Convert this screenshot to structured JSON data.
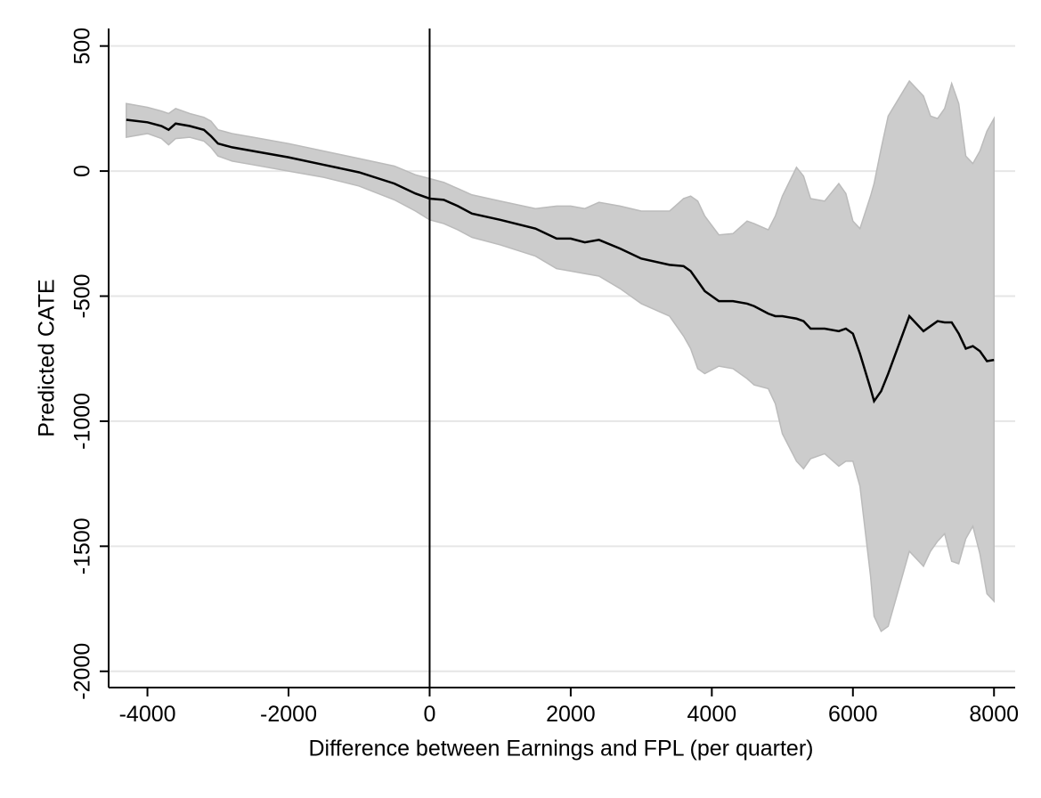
{
  "chart_data": {
    "type": "line",
    "x_label": "Difference between Earnings and FPL (per quarter)",
    "y_label": "Predicted CATE",
    "x": [
      -4300,
      -4000,
      -3800,
      -3700,
      -3600,
      -3400,
      -3200,
      -3100,
      -3000,
      -2800,
      -2500,
      -2000,
      -1500,
      -1000,
      -500,
      -200,
      0,
      200,
      400,
      600,
      1000,
      1500,
      1800,
      2000,
      2200,
      2400,
      2700,
      3000,
      3400,
      3600,
      3700,
      3800,
      3900,
      4100,
      4300,
      4500,
      4600,
      4800,
      4900,
      5000,
      5200,
      5300,
      5400,
      5600,
      5800,
      5900,
      6000,
      6100,
      6250,
      6300,
      6400,
      6500,
      6800,
      7000,
      7100,
      7200,
      7300,
      7400,
      7500,
      7600,
      7700,
      7800,
      7900,
      8000
    ],
    "series": [
      {
        "color": "#000000",
        "values": [
          205,
          195,
          180,
          165,
          190,
          180,
          165,
          140,
          110,
          95,
          80,
          55,
          25,
          -5,
          -50,
          -90,
          -110,
          -115,
          -140,
          -170,
          -195,
          -230,
          -270,
          -270,
          -285,
          -275,
          -310,
          -350,
          -375,
          -380,
          -400,
          -440,
          -480,
          -520,
          -520,
          -530,
          -540,
          -570,
          -580,
          -580,
          -590,
          -600,
          -630,
          -630,
          -640,
          -630,
          -650,
          -730,
          -870,
          -920,
          -880,
          -810,
          -580,
          -640,
          -620,
          -600,
          -605,
          -605,
          -650,
          -710,
          -700,
          -720,
          -760,
          -755
        ]
      }
    ],
    "band": {
      "color": "#cccccc",
      "upper": [
        270,
        255,
        240,
        230,
        250,
        230,
        215,
        200,
        165,
        150,
        135,
        110,
        80,
        50,
        20,
        -15,
        -30,
        -45,
        -70,
        -95,
        -120,
        -150,
        -140,
        -140,
        -150,
        -125,
        -140,
        -160,
        -160,
        -110,
        -100,
        -120,
        -180,
        -255,
        -250,
        -200,
        -210,
        -235,
        -180,
        -100,
        15,
        -20,
        -110,
        -120,
        -50,
        -90,
        -200,
        -230,
        -100,
        -50,
        90,
        220,
        360,
        300,
        220,
        210,
        250,
        350,
        270,
        60,
        30,
        80,
        160,
        210
      ],
      "lower": [
        135,
        150,
        130,
        105,
        130,
        135,
        120,
        95,
        60,
        40,
        25,
        0,
        -25,
        -60,
        -115,
        -160,
        -195,
        -210,
        -235,
        -265,
        -295,
        -340,
        -390,
        -400,
        -410,
        -420,
        -470,
        -530,
        -580,
        -660,
        -710,
        -790,
        -810,
        -780,
        -790,
        -830,
        -855,
        -870,
        -930,
        -1050,
        -1160,
        -1190,
        -1150,
        -1130,
        -1180,
        -1160,
        -1160,
        -1260,
        -1620,
        -1780,
        -1840,
        -1820,
        -1520,
        -1580,
        -1520,
        -1480,
        -1450,
        -1560,
        -1570,
        -1470,
        -1420,
        -1530,
        -1690,
        -1720
      ]
    },
    "vline": 0,
    "xlim": [
      -4550,
      8300
    ],
    "ylim": [
      -2065,
      570
    ],
    "xticks": [
      -4000,
      -2000,
      0,
      2000,
      4000,
      6000,
      8000
    ],
    "yticks": [
      -2000,
      -1500,
      -1000,
      -500,
      0,
      500
    ],
    "grid": true
  }
}
